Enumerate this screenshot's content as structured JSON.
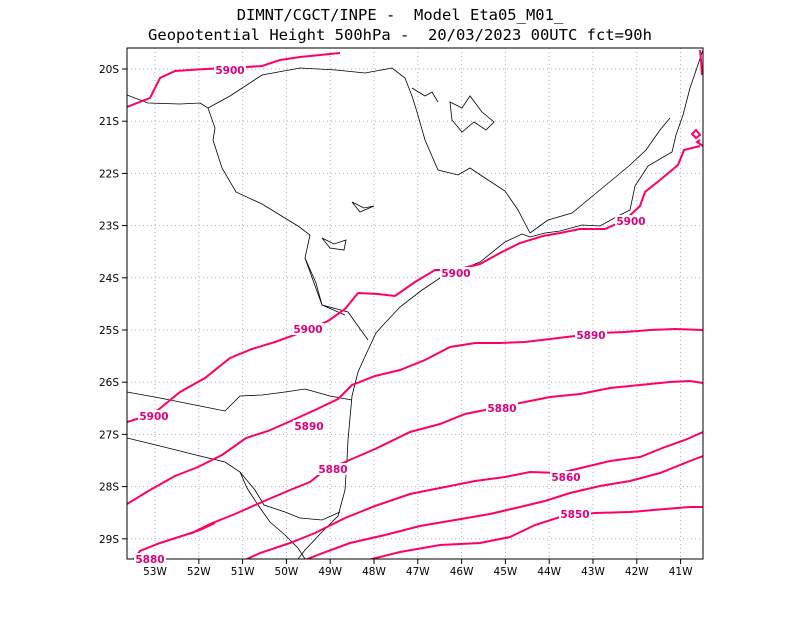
{
  "header": {
    "line1": "DIMNT/CGCT/INPE -  Model Eta05_M01_",
    "line2": "Geopotential Height 500hPa -  20/03/2023 00UTC fct=90h"
  },
  "axes": {
    "lat_labels": [
      "20S",
      "21S",
      "22S",
      "23S",
      "24S",
      "25S",
      "26S",
      "27S",
      "28S",
      "29S"
    ],
    "lon_labels": [
      "53W",
      "52W",
      "51W",
      "50W",
      "49W",
      "48W",
      "47W",
      "46W",
      "45W",
      "44W",
      "43W",
      "42W",
      "41W"
    ]
  },
  "colors": {
    "contour": "#ff0066",
    "label": "#e0007a",
    "coast": "#000000",
    "grid": "#b0b0b0"
  },
  "contours": {
    "labels": [
      {
        "text": "5900"
      },
      {
        "text": "5900"
      },
      {
        "text": "5900"
      },
      {
        "text": "5900"
      },
      {
        "text": "5900"
      },
      {
        "text": "5890"
      },
      {
        "text": "5890"
      },
      {
        "text": "5880"
      },
      {
        "text": "5880"
      },
      {
        "text": "5860"
      },
      {
        "text": "5850"
      },
      {
        "text": "5880"
      }
    ]
  }
}
